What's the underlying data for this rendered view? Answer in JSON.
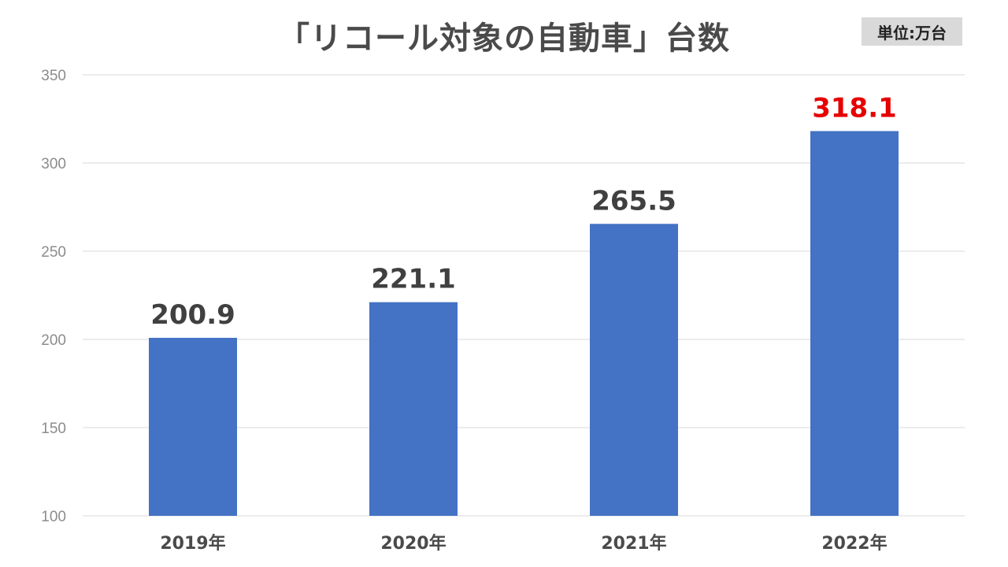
{
  "title": "「リコール対象の自動車」台数",
  "unit_label": "単位:万台",
  "chart_data": {
    "type": "bar",
    "categories": [
      "2019年",
      "2020年",
      "2021年",
      "2022年"
    ],
    "values": [
      200.9,
      221.1,
      265.5,
      318.1
    ],
    "data_labels": [
      "200.9",
      "221.1",
      "265.5",
      "318.1"
    ],
    "ylim": [
      100,
      350
    ],
    "yticks": [
      100,
      150,
      200,
      250,
      300,
      350
    ],
    "grid": true,
    "legend": "none",
    "title": "「リコール対象の自動車」台数",
    "xlabel": "",
    "ylabel": ""
  },
  "colors": {
    "bar": "#4472c4",
    "grid": "#d9d9d9",
    "label": "#404040",
    "highlight_label": "#e60000"
  },
  "highlight_index": 3
}
